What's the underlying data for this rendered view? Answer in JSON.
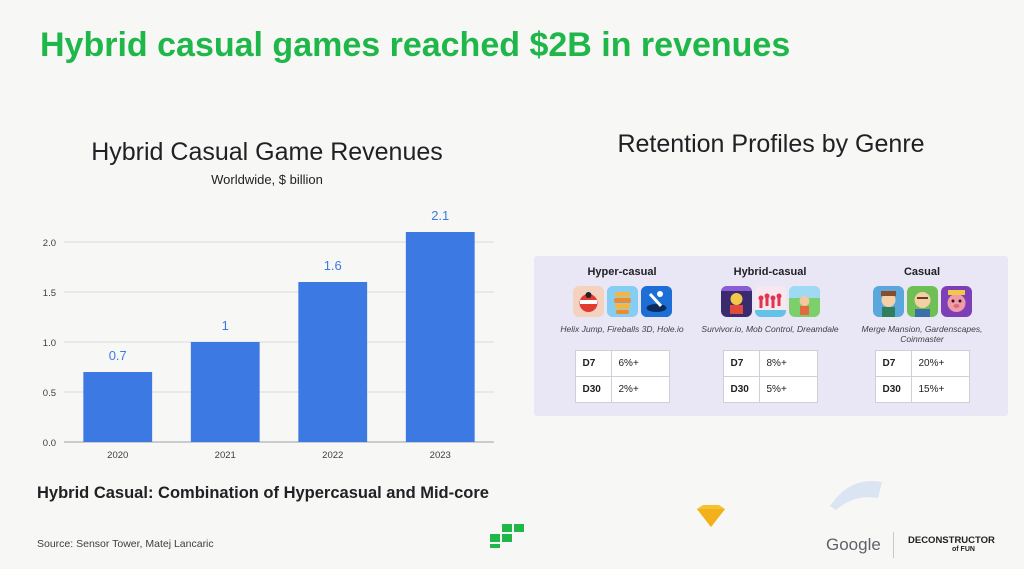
{
  "slide": {
    "title": "Hybrid casual games reached $2B in revenues",
    "tagline": "Hybrid Casual: Combination of Hypercasual and Mid-core",
    "source": "Source: Sensor Tower, Matej Lancaric"
  },
  "chart_data": {
    "type": "bar",
    "title": "Hybrid Casual Game Revenues",
    "subtitle": "Worldwide, $ billion",
    "categories": [
      "2020",
      "2021",
      "2022",
      "2023"
    ],
    "values": [
      0.7,
      1,
      1.6,
      2.1
    ],
    "data_labels": [
      "0.7",
      "1",
      "1.6",
      "2.1"
    ],
    "y_ticks": [
      "0.0",
      "0.5",
      "1.0",
      "1.5",
      "2.0"
    ],
    "ylim": [
      0,
      2.0
    ],
    "grid": true,
    "bar_color": "#3d79e3",
    "label_color": "#3d79e3"
  },
  "retention": {
    "title": "Retention Profiles by Genre",
    "genres": [
      {
        "name": "Hyper-casual",
        "games": "Helix Jump, Fireballs 3D, Hole.io",
        "rows": [
          {
            "metric": "D7",
            "value": "6%+"
          },
          {
            "metric": "D30",
            "value": "2%+"
          }
        ]
      },
      {
        "name": "Hybrid-casual",
        "games": "Survivor.io, Mob Control, Dreamdale",
        "rows": [
          {
            "metric": "D7",
            "value": "8%+"
          },
          {
            "metric": "D30",
            "value": "5%+"
          }
        ]
      },
      {
        "name": "Casual",
        "games": "Merge Mansion, Gardenscapes, Coinmaster",
        "rows": [
          {
            "metric": "D7",
            "value": "20%+"
          },
          {
            "metric": "D30",
            "value": "15%+"
          }
        ]
      }
    ]
  },
  "footer": {
    "google": "Google",
    "brand_line1": "DECONSTRUCTOR",
    "brand_line2": "of FUN"
  },
  "colors": {
    "title_green": "#1fb64a",
    "panel_bg": "#e9e7f6"
  }
}
